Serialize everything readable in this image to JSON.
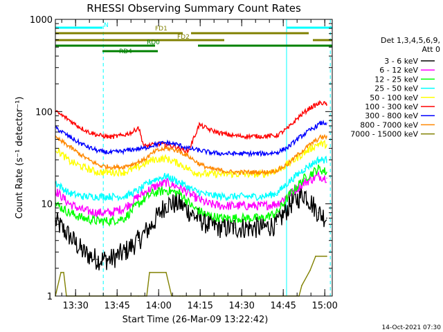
{
  "chart_data": {
    "type": "line",
    "title": "RHESSI Observing Summary Count Rates",
    "xlabel": "Start Time (26-Mar-09 13:22:42)",
    "ylabel": "Count Rate (s⁻¹ detector⁻¹)",
    "yscale": "log",
    "ylim": [
      1,
      1000
    ],
    "y_ticks": [
      {
        "value": 1,
        "label": "1"
      },
      {
        "value": 10,
        "label": "10"
      },
      {
        "value": 100,
        "label": "100"
      },
      {
        "value": 1000,
        "label": "1000"
      }
    ],
    "xlim_minutes": [
      0,
      100
    ],
    "x_ticks": [
      {
        "min": 7.3,
        "label": "13:30"
      },
      {
        "min": 22.3,
        "label": "13:45"
      },
      {
        "min": 37.3,
        "label": "14:00"
      },
      {
        "min": 52.3,
        "label": "14:15"
      },
      {
        "min": 67.3,
        "label": "14:30"
      },
      {
        "min": 82.3,
        "label": "14:45"
      },
      {
        "min": 97.3,
        "label": "15:00"
      }
    ],
    "legend_header": [
      "Det 1,3,4,5,6,9,",
      "Att 0"
    ],
    "legend_position": "right",
    "footer_date": "14-Oct-2021 07:30",
    "grid": false,
    "series": [
      {
        "name": "3 - 6 keV",
        "color": "#000000",
        "x": [
          0,
          5,
          10,
          15,
          20,
          25,
          30,
          35,
          40,
          45,
          50,
          55,
          60,
          65,
          70,
          75,
          80,
          85,
          90,
          95,
          98
        ],
        "y": [
          6.5,
          4.5,
          3,
          2.5,
          2.5,
          3,
          4,
          6,
          10,
          10,
          7.5,
          6,
          5.5,
          5.5,
          5.5,
          5.5,
          6,
          10,
          13,
          8,
          7
        ]
      },
      {
        "name": "6 - 12 keV",
        "color": "#ff00ff",
        "x": [
          0,
          5,
          10,
          15,
          20,
          25,
          30,
          35,
          40,
          45,
          50,
          55,
          60,
          65,
          70,
          75,
          80,
          85,
          90,
          95,
          98
        ],
        "y": [
          14,
          10,
          8.5,
          8,
          8,
          9,
          12,
          15,
          17,
          15,
          12,
          10,
          9.5,
          9.5,
          9.5,
          9.5,
          10,
          13,
          17,
          20,
          19
        ]
      },
      {
        "name": "12 - 25 keV",
        "color": "#00ff00",
        "x": [
          0,
          5,
          10,
          15,
          20,
          25,
          30,
          35,
          40,
          45,
          50,
          55,
          60,
          65,
          70,
          75,
          80,
          85,
          90,
          95,
          98
        ],
        "y": [
          10,
          8,
          7,
          6.5,
          6.5,
          7,
          10,
          13,
          14,
          13,
          9,
          7.5,
          7,
          7,
          7,
          7,
          8,
          13,
          19,
          24,
          22
        ]
      },
      {
        "name": "25 - 50 keV",
        "color": "#00ffff",
        "x": [
          0,
          5,
          10,
          15,
          20,
          25,
          30,
          35,
          40,
          45,
          50,
          55,
          60,
          65,
          70,
          75,
          80,
          85,
          90,
          95,
          98
        ],
        "y": [
          17,
          13,
          12,
          12,
          12,
          12,
          14,
          18,
          20,
          17,
          14,
          12.5,
          12,
          12,
          12,
          12,
          13,
          18,
          24,
          30,
          30
        ]
      },
      {
        "name": "50 - 100 keV",
        "color": "#ffff00",
        "x": [
          0,
          5,
          10,
          15,
          20,
          25,
          30,
          35,
          40,
          45,
          50,
          55,
          60,
          65,
          70,
          75,
          80,
          85,
          90,
          95,
          98
        ],
        "y": [
          40,
          29,
          25,
          22,
          22,
          22,
          25,
          30,
          31,
          27,
          22,
          21,
          21,
          21,
          21,
          21,
          23,
          28,
          36,
          45,
          44
        ]
      },
      {
        "name": "100 - 300 keV",
        "color": "#ff0000",
        "x": [
          0,
          4,
          8,
          12,
          16,
          20,
          24,
          28,
          30,
          32,
          36,
          40,
          44,
          48,
          52,
          56,
          60,
          64,
          68,
          72,
          76,
          80,
          84,
          88,
          92,
          96,
          98
        ],
        "y": [
          100,
          85,
          70,
          60,
          55,
          53,
          55,
          60,
          68,
          42,
          44,
          44,
          41,
          37,
          72,
          63,
          58,
          55,
          54,
          54,
          54,
          55,
          66,
          88,
          110,
          125,
          120
        ]
      },
      {
        "name": "300 - 800 keV",
        "color": "#0000ff",
        "x": [
          0,
          4,
          8,
          12,
          16,
          20,
          24,
          28,
          32,
          36,
          40,
          44,
          48,
          52,
          56,
          60,
          64,
          68,
          72,
          76,
          80,
          84,
          88,
          92,
          96,
          98
        ],
        "y": [
          67,
          56,
          47,
          41,
          37,
          36,
          37,
          39,
          40,
          44,
          46,
          44,
          40,
          38,
          36,
          35,
          35,
          35,
          35,
          35,
          36,
          41,
          52,
          63,
          75,
          75
        ]
      },
      {
        "name": "800 - 7000 keV",
        "color": "#ff8800",
        "x": [
          0,
          4,
          8,
          12,
          16,
          20,
          24,
          28,
          32,
          36,
          40,
          44,
          48,
          52,
          56,
          60,
          64,
          68,
          72,
          76,
          80,
          84,
          88,
          92,
          96,
          98
        ],
        "y": [
          52,
          44,
          36,
          30,
          26,
          25,
          25,
          27,
          30,
          37,
          40,
          38,
          33,
          27,
          24,
          23,
          22,
          22,
          22,
          22,
          23,
          27,
          35,
          44,
          53,
          53
        ]
      },
      {
        "name": "7000 - 15000 keV",
        "color": "#808000",
        "x": [
          0,
          2,
          3,
          4,
          30,
          33,
          34,
          40,
          42,
          45,
          46,
          88,
          89,
          92,
          94,
          98
        ],
        "y": [
          1,
          1.8,
          1.8,
          1,
          1,
          1,
          1.8,
          1.8,
          1,
          1,
          1,
          1,
          1.3,
          1.9,
          2.7,
          2.7
        ]
      }
    ],
    "annotations": {
      "bars": [
        {
          "label": "N",
          "color": "#00ffff",
          "segments": [
            [
              0,
              17
            ],
            [
              83.5,
              100
            ]
          ]
        },
        {
          "label": "FD1",
          "color": "#808000",
          "segments": [
            [
              0,
              46
            ],
            [
              49,
              91.5
            ]
          ]
        },
        {
          "label": "FD2",
          "color": "#808000",
          "segments": [
            [
              0,
              61
            ],
            [
              93,
              100
            ]
          ]
        },
        {
          "label": "RD0",
          "color": "#008000",
          "segments": [
            [
              0,
              36
            ],
            [
              51.5,
              100
            ]
          ]
        },
        {
          "label": "RD4",
          "color": "#008000",
          "segments": [
            [
              17,
              37
            ]
          ]
        }
      ],
      "vertical_lines": [
        {
          "x": 0,
          "style": "solid"
        },
        {
          "x": 17.3,
          "style": "dashed"
        },
        {
          "x": 83.5,
          "style": "solid"
        },
        {
          "x": 99.3,
          "style": "dashed"
        }
      ]
    }
  }
}
